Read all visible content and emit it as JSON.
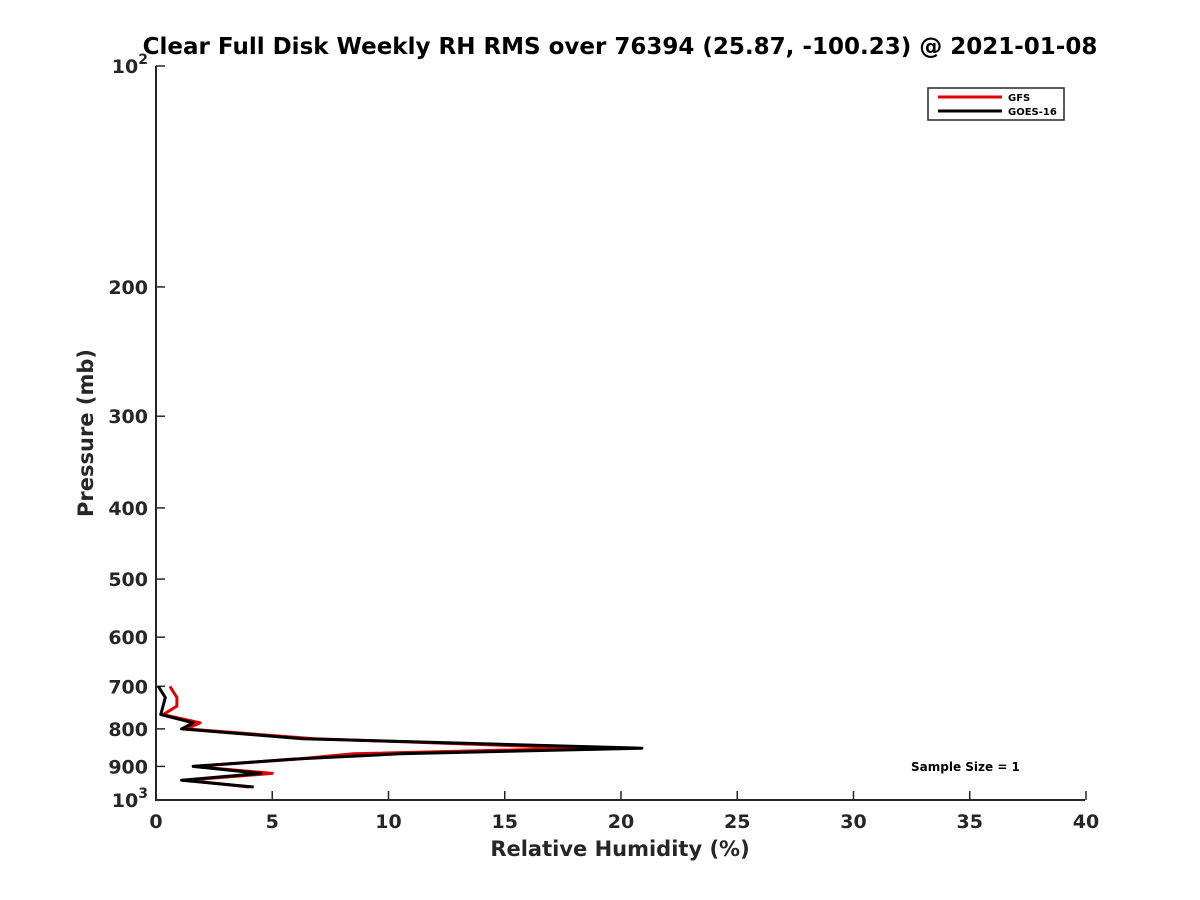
{
  "chart_data": {
    "type": "line",
    "title": "Clear Full Disk Weekly RH RMS over 76394 (25.87, -100.23) @ 2021-01-08",
    "xlabel": "Relative Humidity (%)",
    "ylabel": "Pressure (mb)",
    "xlim": [
      0,
      40
    ],
    "ylim": [
      100,
      1000
    ],
    "y_scale": "log",
    "y_reversed": true,
    "grid": false,
    "legend_position": "top-right",
    "x_ticks": [
      0,
      5,
      10,
      15,
      20,
      25,
      30,
      35,
      40
    ],
    "x_tick_labels": [
      "0",
      "5",
      "10",
      "15",
      "20",
      "25",
      "30",
      "35",
      "40"
    ],
    "y_ticks": [
      100,
      200,
      300,
      400,
      500,
      600,
      700,
      800,
      900,
      1000
    ],
    "y_tick_labels": [
      {
        "base": "10",
        "exp": "2"
      },
      {
        "base": "200"
      },
      {
        "base": "300"
      },
      {
        "base": "400"
      },
      {
        "base": "500"
      },
      {
        "base": "600"
      },
      {
        "base": "700"
      },
      {
        "base": "800"
      },
      {
        "base": "900"
      },
      {
        "base": "10",
        "exp": "3"
      }
    ],
    "series": [
      {
        "name": "GFS",
        "color": "#e00000",
        "points": [
          {
            "x": 0.6,
            "y": 700
          },
          {
            "x": 0.9,
            "y": 725
          },
          {
            "x": 0.9,
            "y": 745
          },
          {
            "x": 0.3,
            "y": 765
          },
          {
            "x": 1.9,
            "y": 785
          },
          {
            "x": 1.3,
            "y": 800
          },
          {
            "x": 6.8,
            "y": 825
          },
          {
            "x": 18.5,
            "y": 850
          },
          {
            "x": 8.5,
            "y": 865
          },
          {
            "x": 6.0,
            "y": 880
          },
          {
            "x": 1.6,
            "y": 900
          },
          {
            "x": 5.0,
            "y": 920
          },
          {
            "x": 1.3,
            "y": 940
          },
          {
            "x": 4.0,
            "y": 960
          }
        ]
      },
      {
        "name": "GOES-16",
        "color": "#000000",
        "points": [
          {
            "x": 0.1,
            "y": 700
          },
          {
            "x": 0.4,
            "y": 725
          },
          {
            "x": 0.3,
            "y": 745
          },
          {
            "x": 0.2,
            "y": 765
          },
          {
            "x": 1.6,
            "y": 785
          },
          {
            "x": 1.1,
            "y": 800
          },
          {
            "x": 6.3,
            "y": 825
          },
          {
            "x": 20.9,
            "y": 850
          },
          {
            "x": 10.5,
            "y": 865
          },
          {
            "x": 5.8,
            "y": 880
          },
          {
            "x": 1.6,
            "y": 900
          },
          {
            "x": 4.5,
            "y": 920
          },
          {
            "x": 1.1,
            "y": 940
          },
          {
            "x": 4.2,
            "y": 960
          }
        ]
      }
    ],
    "annotations": [
      "Sample Size = 1"
    ]
  }
}
